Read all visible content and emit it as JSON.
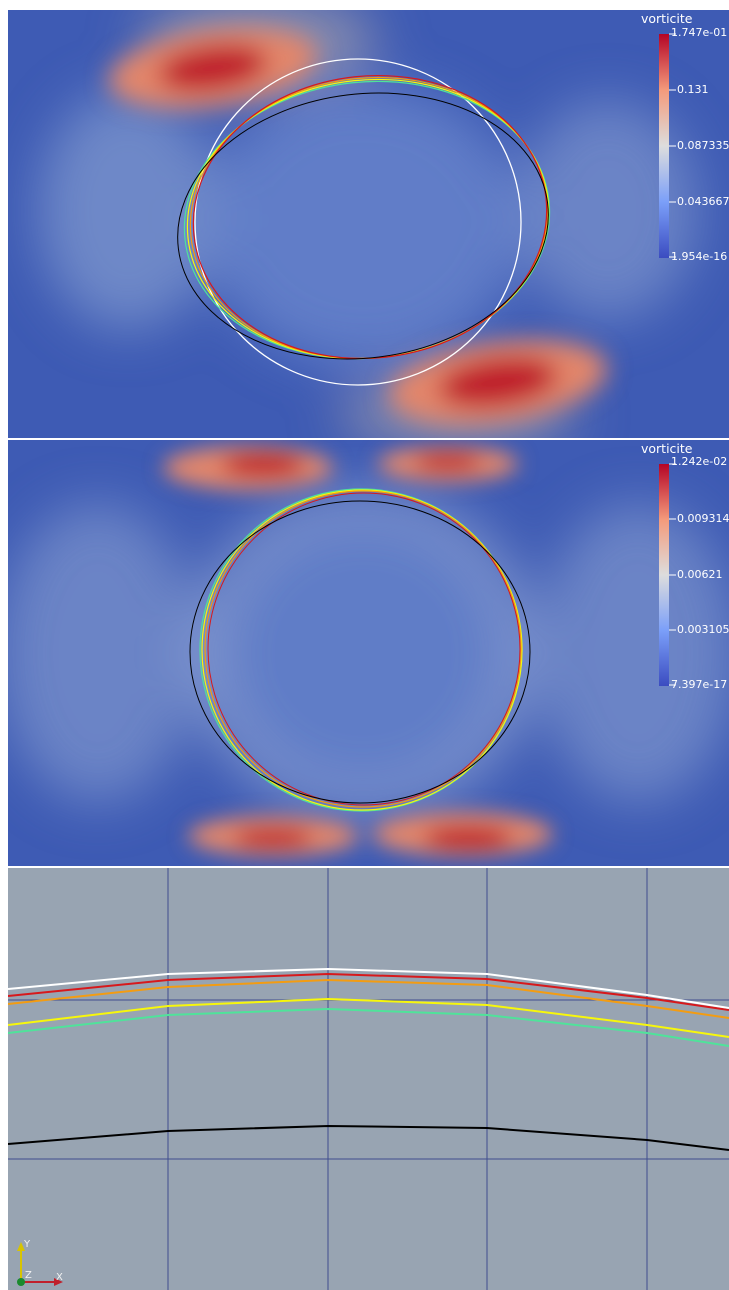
{
  "panels": {
    "top": {
      "colorbar": {
        "title": "vorticite",
        "max_label": "1.747e-01",
        "tick1": "0.131",
        "tick2": "0.087335",
        "tick3": "0.043667",
        "min_label": "1.954e-16"
      }
    },
    "middle": {
      "colorbar": {
        "title": "vorticite",
        "max_label": "1.242e-02",
        "tick1": "0.0093149",
        "tick2": "0.00621",
        "tick3": "0.003105",
        "min_label": "7.397e-17"
      }
    },
    "bottom": {
      "orientation_axes": {
        "y_label": "Y",
        "z_label": "Z",
        "x_label": "X"
      }
    }
  },
  "colors": {
    "field_low": "#3b4cc0",
    "field_high": "#b40426",
    "contour_white": "#ffffff",
    "contour_red": "#d7191c",
    "contour_orange": "#f39c12",
    "contour_yellow": "#f7f70b",
    "contour_green": "#4fe39a",
    "contour_black": "#000000",
    "zoom_background": "#98a4b2",
    "grid": "#3f4d8e"
  }
}
